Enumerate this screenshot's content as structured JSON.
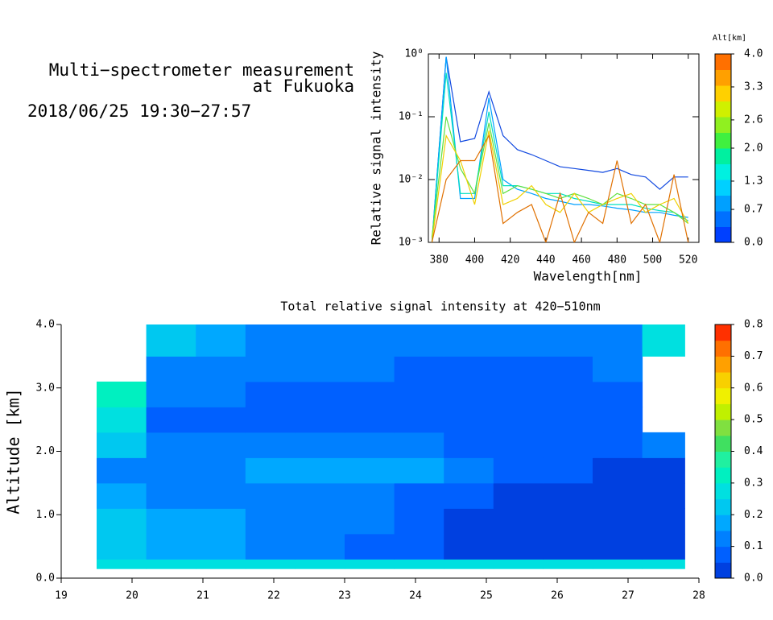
{
  "header": {
    "title_lines": [
      "Multi−spectrometer measurement",
      "at Fukuoka"
    ],
    "date": "2018/06/25 19:30−27:57"
  },
  "chart_data": [
    {
      "type": "line",
      "xlabel": "Wavelength[nm]",
      "ylabel": "Relative signal intensity",
      "yscale": "log",
      "xlim": [
        374,
        526
      ],
      "xticks": [
        380,
        400,
        420,
        440,
        460,
        480,
        500,
        520
      ],
      "ylim": [
        0.001,
        1
      ],
      "yticks": [
        {
          "value": 0.001,
          "label": "10⁻³"
        },
        {
          "value": 0.01,
          "label": "10⁻²"
        },
        {
          "value": 0.1,
          "label": "10⁻¹"
        },
        {
          "value": 1,
          "label": "10⁰"
        }
      ],
      "x": [
        376,
        384,
        392,
        400,
        408,
        416,
        424,
        432,
        440,
        448,
        456,
        464,
        472,
        480,
        488,
        496,
        504,
        512,
        520
      ],
      "series": [
        {
          "color": "#1048e0",
          "values": [
            0.001,
            0.9,
            0.04,
            0.045,
            0.25,
            0.05,
            0.03,
            0.025,
            0.02,
            0.016,
            0.015,
            0.014,
            0.013,
            0.015,
            0.012,
            0.011,
            0.007,
            0.011,
            0.011
          ]
        },
        {
          "color": "#00a0ff",
          "values": [
            0.001,
            0.9,
            0.005,
            0.005,
            0.2,
            0.01,
            0.007,
            0.006,
            0.005,
            0.0045,
            0.004,
            0.004,
            0.0038,
            0.0035,
            0.0033,
            0.003,
            0.003,
            0.0027,
            0.0025
          ]
        },
        {
          "color": "#00e0c0",
          "values": [
            0.001,
            0.5,
            0.006,
            0.006,
            0.12,
            0.008,
            0.008,
            0.007,
            0.006,
            0.006,
            0.005,
            0.0045,
            0.004,
            0.004,
            0.004,
            0.0035,
            0.0032,
            0.003,
            0.0022
          ]
        },
        {
          "color": "#60e040",
          "values": [
            0.0012,
            0.1,
            0.015,
            0.006,
            0.08,
            0.006,
            0.008,
            0.007,
            0.006,
            0.005,
            0.006,
            0.005,
            0.004,
            0.006,
            0.005,
            0.004,
            0.004,
            0.003,
            0.002
          ]
        },
        {
          "color": "#f0d000",
          "values": [
            0.001,
            0.05,
            0.02,
            0.004,
            0.06,
            0.004,
            0.005,
            0.008,
            0.004,
            0.003,
            0.006,
            0.003,
            0.004,
            0.005,
            0.006,
            0.003,
            0.004,
            0.005,
            0.002
          ]
        },
        {
          "color": "#e07000",
          "values": [
            0.001,
            0.01,
            0.02,
            0.02,
            0.05,
            0.002,
            0.003,
            0.004,
            0.001,
            0.006,
            0.001,
            0.003,
            0.002,
            0.02,
            0.002,
            0.004,
            0.001,
            0.012,
            0.001
          ]
        }
      ],
      "colorbar": {
        "label": "Alt[km]",
        "lim": [
          0,
          4
        ],
        "ticks": [
          {
            "value": 0,
            "label": "0.0"
          },
          0.7,
          1.3,
          {
            "value": 2,
            "label": "2.0"
          },
          2.6,
          3.3,
          {
            "value": 4,
            "label": "4.0"
          }
        ],
        "colors": [
          "#0040ff",
          "#0070ff",
          "#00a0ff",
          "#00d0ff",
          "#00f0e0",
          "#00f0a0",
          "#40f040",
          "#90f020",
          "#d0f000",
          "#ffd000",
          "#ffa000",
          "#ff7000"
        ]
      }
    },
    {
      "type": "heatmap",
      "title": "Total relative signal intensity at 420−510nm",
      "ylabel": "Altitude [km]",
      "xlim": [
        19,
        28
      ],
      "xticks": [
        19,
        20,
        21,
        22,
        23,
        24,
        25,
        26,
        27,
        28
      ],
      "ylim": [
        0,
        4
      ],
      "yticks": [
        {
          "value": 0,
          "label": "0.0"
        },
        {
          "value": 1,
          "label": "1.0"
        },
        {
          "value": 2,
          "label": "2.0"
        },
        {
          "value": 3,
          "label": "3.0"
        },
        {
          "value": 4,
          "label": "4.0"
        }
      ],
      "x_bins": [
        19.5,
        20.2,
        20.9,
        21.6,
        22.3,
        23.0,
        23.7,
        24.4,
        25.1,
        25.8,
        26.5,
        27.2,
        27.8
      ],
      "y_bins": [
        0.15,
        0.3,
        0.7,
        1.1,
        1.5,
        1.9,
        2.3,
        2.7,
        3.1,
        3.5,
        4.0
      ],
      "z": [
        [
          0.3,
          0.25,
          0.25,
          0.25,
          0.25,
          0.25,
          0.25,
          0.25,
          0.25,
          0.25,
          0.25,
          0.25
        ],
        [
          0.2,
          0.18,
          0.17,
          0.12,
          0.1,
          0.08,
          0.05,
          0.04,
          0.04,
          0.04,
          0.04,
          0.04
        ],
        [
          0.2,
          0.18,
          0.18,
          0.15,
          0.12,
          0.1,
          0.05,
          0.04,
          0.04,
          0.04,
          0.04,
          0.04
        ],
        [
          0.18,
          0.15,
          0.15,
          0.14,
          0.12,
          0.1,
          0.07,
          0.05,
          0.04,
          0.04,
          0.04,
          0.04
        ],
        [
          0.15,
          0.13,
          0.15,
          0.18,
          0.17,
          0.16,
          0.17,
          0.12,
          0.05,
          0.05,
          0.04,
          0.04
        ],
        [
          0.2,
          0.1,
          0.1,
          0.11,
          0.12,
          0.1,
          0.1,
          0.08,
          0.07,
          0.06,
          0.06,
          0.1
        ],
        [
          0.3,
          0.07,
          0.08,
          0.07,
          0.08,
          0.08,
          0.07,
          0.06,
          0.06,
          0.06,
          0.07,
          null
        ],
        [
          0.35,
          0.1,
          0.1,
          0.09,
          0.08,
          0.08,
          0.07,
          0.07,
          0.06,
          0.07,
          0.08,
          null
        ],
        [
          null,
          0.12,
          0.12,
          0.11,
          0.1,
          0.1,
          0.09,
          0.08,
          0.08,
          0.09,
          0.1,
          null
        ],
        [
          null,
          0.2,
          0.18,
          0.15,
          0.14,
          0.15,
          0.12,
          0.12,
          0.12,
          0.13,
          0.14,
          0.3
        ]
      ],
      "colorbar": {
        "lim": [
          0,
          0.8
        ],
        "ticks": [
          {
            "value": 0,
            "label": "0.0"
          },
          0.1,
          0.2,
          0.3,
          0.4,
          0.5,
          0.6,
          0.7,
          0.8
        ],
        "colors": [
          "#0040e0",
          "#0060ff",
          "#0080ff",
          "#00a8ff",
          "#00c8f0",
          "#00e0e0",
          "#00f0c0",
          "#20f0a0",
          "#40e060",
          "#80e040",
          "#c0f000",
          "#f0f000",
          "#f8d000",
          "#ffa000",
          "#ff7000",
          "#ff3000"
        ]
      }
    }
  ]
}
